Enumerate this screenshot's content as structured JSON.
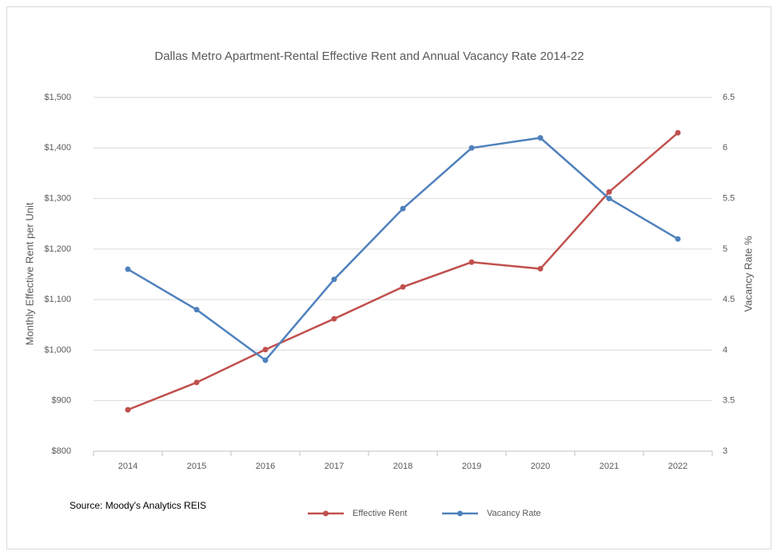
{
  "chart_data": {
    "type": "line",
    "title": "Dallas Metro Apartment-Rental Effective Rent and Annual Vacancy Rate 2014-22",
    "ylabel": "Monthly Effective Rent per Unit",
    "y2label": "Vacancy Rate %",
    "source": "Source: Moody's Analytics REIS",
    "categories": [
      "2014",
      "2015",
      "2016",
      "2017",
      "2018",
      "2019",
      "2020",
      "2021",
      "2022"
    ],
    "series": [
      {
        "name": "Effective Rent",
        "color": "#c0504d",
        "values": [
          882,
          936,
          1001,
          1062,
          1125,
          1174,
          1161,
          1313,
          1430
        ]
      },
      {
        "name": "Vacancy Rate",
        "color": "#4f81bd",
        "axis": "y2",
        "values": [
          4.8,
          4.4,
          3.9,
          4.7,
          5.4,
          6.0,
          6.1,
          5.5,
          5.1
        ]
      }
    ],
    "ylim": [
      800,
      1500
    ],
    "yticks": [
      {
        "value": 800,
        "label": "$800"
      },
      {
        "value": 900,
        "label": "$900"
      },
      {
        "value": 1000,
        "label": "$1,000"
      },
      {
        "value": 1100,
        "label": "$1,100"
      },
      {
        "value": 1200,
        "label": "$1,200"
      },
      {
        "value": 1300,
        "label": "$1,300"
      },
      {
        "value": 1400,
        "label": "$1,400"
      },
      {
        "value": 1500,
        "label": "$1,500"
      }
    ],
    "y2lim": [
      3,
      6.5
    ],
    "y2ticks": [
      3,
      3.5,
      4,
      4.5,
      5,
      5.5,
      6,
      6.5
    ],
    "grid": true,
    "legend": "bottom"
  }
}
